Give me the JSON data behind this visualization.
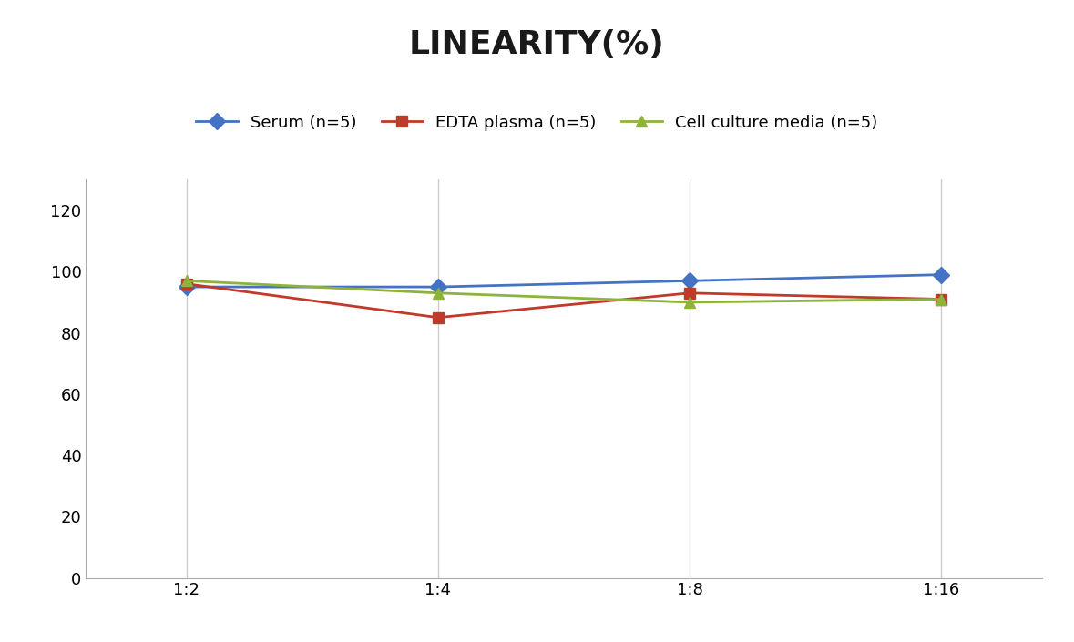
{
  "title": "LINEARITY(%)",
  "title_fontsize": 26,
  "title_fontweight": "bold",
  "x_labels": [
    "1:2",
    "1:4",
    "1:8",
    "1:16"
  ],
  "series": [
    {
      "label": "Serum (n=5)",
      "values": [
        95,
        95,
        97,
        99
      ],
      "color": "#4472C4",
      "marker": "D",
      "markersize": 9,
      "linewidth": 2.0
    },
    {
      "label": "EDTA plasma (n=5)",
      "values": [
        96,
        85,
        93,
        91
      ],
      "color": "#C0392B",
      "marker": "s",
      "markersize": 9,
      "linewidth": 2.0
    },
    {
      "label": "Cell culture media (n=5)",
      "values": [
        97,
        93,
        90,
        91
      ],
      "color": "#8DB33A",
      "marker": "^",
      "markersize": 9,
      "linewidth": 2.0
    }
  ],
  "ylim": [
    0,
    130
  ],
  "yticks": [
    0,
    20,
    40,
    60,
    80,
    100,
    120
  ],
  "tick_fontsize": 13,
  "legend_fontsize": 13,
  "grid_color": "#CCCCCC",
  "background_color": "#FFFFFF",
  "spine_color": "#AAAAAA"
}
